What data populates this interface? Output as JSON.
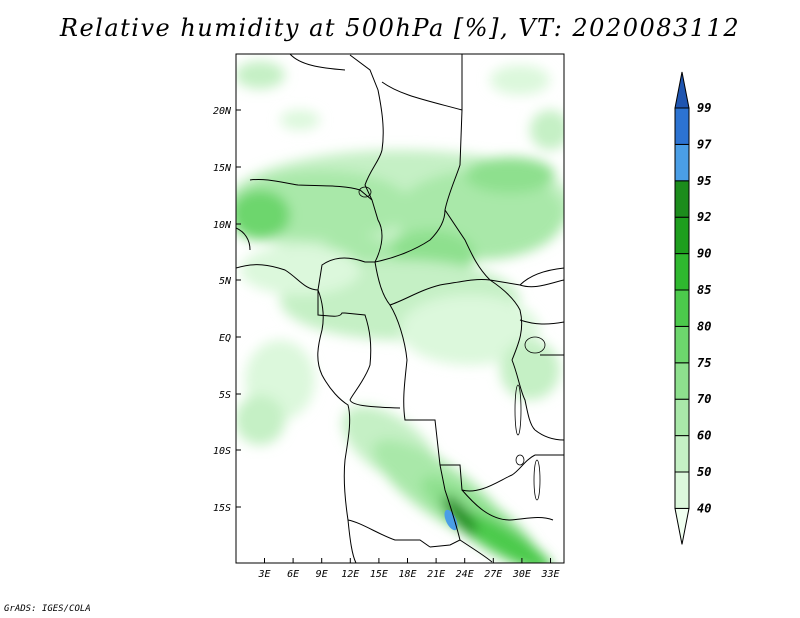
{
  "title": "Relative humidity at 500hPa [%], VT: 2020083112",
  "credit": "GrADS: IGES/COLA",
  "lat_labels": [
    "20N",
    "15N",
    "10N",
    "5N",
    "EQ",
    "5S",
    "10S",
    "15S"
  ],
  "lon_labels": [
    "3E",
    "6E",
    "9E",
    "12E",
    "15E",
    "18E",
    "21E",
    "24E",
    "27E",
    "30E",
    "33E"
  ],
  "colorbar": {
    "levels": [
      "40",
      "50",
      "60",
      "70",
      "75",
      "80",
      "85",
      "90",
      "92",
      "95",
      "97",
      "99"
    ],
    "colors": [
      "#f0fff0",
      "#dcf8dc",
      "#c5f0c5",
      "#a9e8a9",
      "#8ee08e",
      "#6dd66d",
      "#4cca4c",
      "#2fb82f",
      "#1e9e1e",
      "#1c8c1c",
      "#4a9ee6",
      "#2c73d2",
      "#1f55b0"
    ]
  },
  "map_extent": {
    "lon": [
      0,
      35
    ],
    "lat": [
      -20,
      24
    ]
  }
}
